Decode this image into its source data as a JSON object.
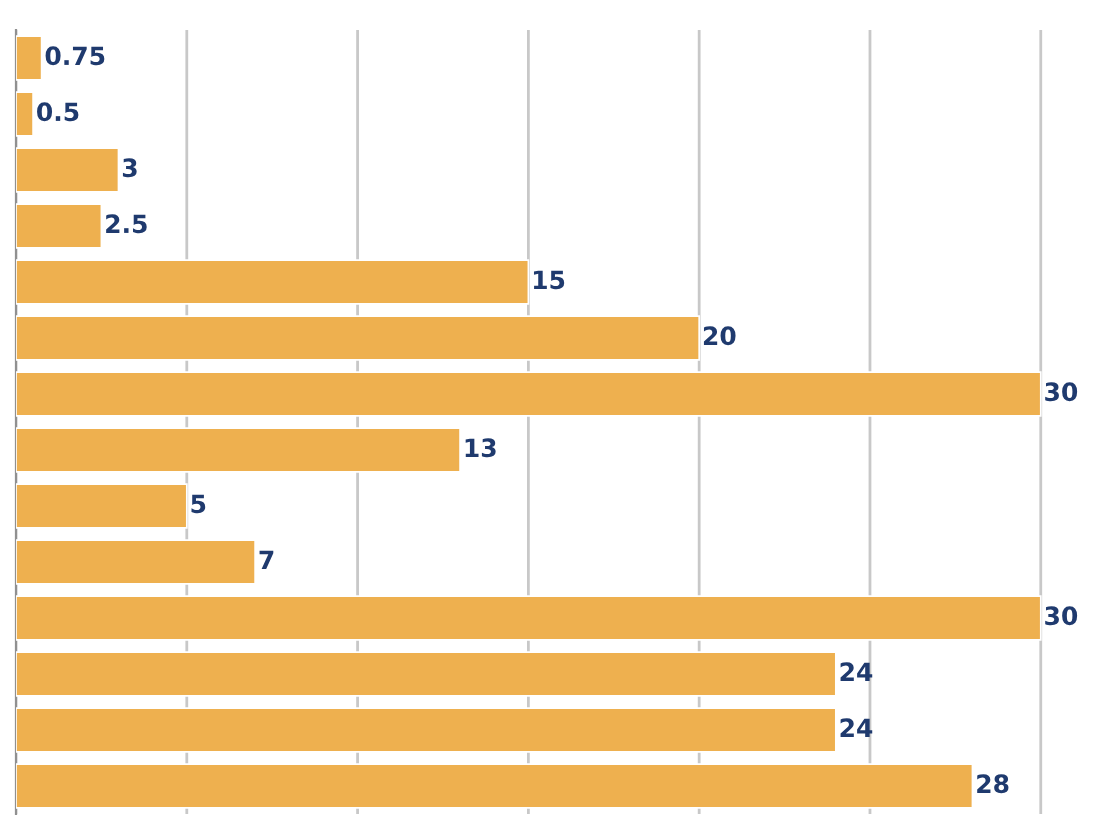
{
  "chart_data": {
    "type": "bar",
    "orientation": "horizontal",
    "categories": [
      null,
      null,
      null,
      null,
      null,
      null,
      null,
      null,
      null,
      null,
      null,
      null,
      null,
      null
    ],
    "values": [
      0.75,
      0.5,
      3,
      2.5,
      15,
      20,
      30,
      13,
      5,
      7,
      30,
      24,
      24,
      28
    ],
    "color": "#eeb04f",
    "xticks": [
      {
        "value": 0,
        "label": null
      },
      {
        "value": 5,
        "label": null
      },
      {
        "value": 10,
        "label": null
      },
      {
        "value": 15,
        "label": null
      },
      {
        "value": 20,
        "label": null
      },
      {
        "value": 25,
        "label": null
      },
      {
        "value": 30,
        "label": null
      }
    ],
    "grid": "x",
    "data_labels": true
  }
}
